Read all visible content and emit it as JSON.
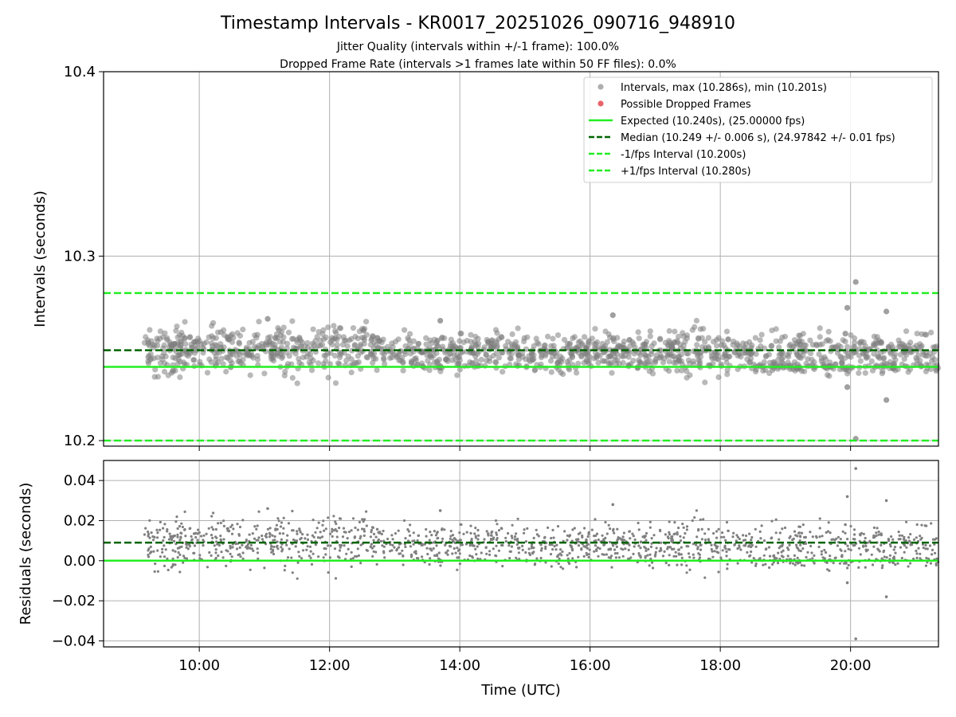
{
  "chart_data": {
    "type": "scatter",
    "title": "Timestamp Intervals - KR0017_20251026_090716_948910",
    "subtitle_1": "Jitter Quality (intervals within +/-1 frame): 100.0%",
    "subtitle_2": "Dropped Frame Rate (intervals >1 frames late within 50 FF files): 0.0%",
    "xlabel": "Time (UTC)",
    "x_tick_labels": [
      "10:00",
      "12:00",
      "14:00",
      "16:00",
      "18:00",
      "20:00"
    ],
    "x_ticks_hours": [
      10,
      12,
      14,
      16,
      18,
      20
    ],
    "xlim_hours": [
      8.53,
      21.35
    ],
    "top": {
      "ylabel": "Intervals (seconds)",
      "ylim": [
        10.197,
        10.4
      ],
      "y_ticks": [
        10.2,
        10.3,
        10.4
      ],
      "y_tick_labels": [
        "10.2",
        "10.3",
        "10.4"
      ],
      "expected": 10.24,
      "median": 10.249,
      "minus_one_fps": 10.2,
      "plus_one_fps": 10.28,
      "data_start_hours": 9.15,
      "data_end_hours": 21.35,
      "max_interval": 10.286,
      "min_interval": 10.201,
      "outliers": [
        {
          "t": 20.08,
          "v": 10.286
        },
        {
          "t": 19.95,
          "v": 10.272
        },
        {
          "t": 20.55,
          "v": 10.27
        },
        {
          "t": 19.92,
          "v": 10.258
        },
        {
          "t": 19.95,
          "v": 10.229
        },
        {
          "t": 20.55,
          "v": 10.222
        },
        {
          "t": 20.08,
          "v": 10.201
        },
        {
          "t": 16.35,
          "v": 10.268
        },
        {
          "t": 13.7,
          "v": 10.265
        },
        {
          "t": 11.05,
          "v": 10.266
        }
      ]
    },
    "bottom": {
      "ylabel": "Residuals (seconds)",
      "ylim": [
        -0.043,
        0.05
      ],
      "y_ticks": [
        -0.04,
        -0.02,
        0.0,
        0.02,
        0.04
      ],
      "y_tick_labels": [
        "−0.04",
        "−0.02",
        "0.00",
        "0.02",
        "0.04"
      ],
      "zero_line": 0.0,
      "median_residual": 0.009,
      "outliers": [
        {
          "t": 20.08,
          "v": 0.046
        },
        {
          "t": 19.95,
          "v": 0.032
        },
        {
          "t": 20.55,
          "v": 0.03
        },
        {
          "t": 19.92,
          "v": 0.018
        },
        {
          "t": 19.95,
          "v": -0.011
        },
        {
          "t": 20.55,
          "v": -0.018
        },
        {
          "t": 20.08,
          "v": -0.039
        },
        {
          "t": 16.35,
          "v": 0.028
        },
        {
          "t": 13.7,
          "v": 0.025
        },
        {
          "t": 11.05,
          "v": 0.026
        }
      ]
    },
    "legend": {
      "placement": "top-right",
      "entries": [
        {
          "key": "intervals",
          "label": "Intervals, max (10.286s), min (10.201s)",
          "style": "marker",
          "color": "#8c8c8c"
        },
        {
          "key": "dropped",
          "label": "Possible Dropped Frames",
          "style": "marker",
          "color": "#e8636a"
        },
        {
          "key": "expected",
          "label": "Expected (10.240s), (25.00000 fps)",
          "style": "solid",
          "color": "#22ee22"
        },
        {
          "key": "median",
          "label": "Median (10.249 +/- 0.006 s), (24.97842 +/- 0.01 fps)",
          "style": "dashed",
          "color": "#006400"
        },
        {
          "key": "minus",
          "label": "-1/fps Interval (10.200s)",
          "style": "dashed",
          "color": "#22ee22"
        },
        {
          "key": "plus",
          "label": "+1/fps Interval (10.280s)",
          "style": "dashed",
          "color": "#22ee22"
        }
      ]
    },
    "colors": {
      "scatter": "#808080",
      "expected": "#22ee22",
      "median": "#006400",
      "fps_bounds": "#22ee22",
      "grid": "#b0b0b0"
    }
  }
}
